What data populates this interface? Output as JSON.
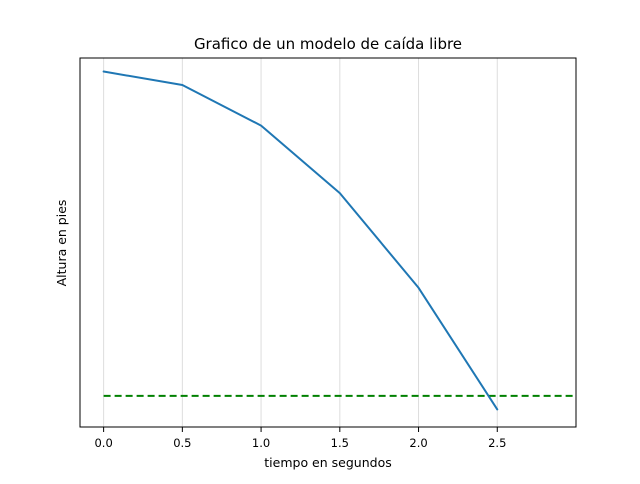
{
  "chart_data": {
    "type": "line",
    "title": "Grafico de un modelo de caída libre",
    "xlabel": "tiempo en segundos",
    "ylabel": "Altura en pies",
    "xlim": [
      -0.15,
      3.0
    ],
    "ylim": [
      -1.3,
      26.0
    ],
    "x_ticks": [
      0.0,
      0.5,
      1.0,
      1.5,
      2.0,
      2.5
    ],
    "x_tick_labels": [
      "0.0",
      "0.5",
      "1.0",
      "1.5",
      "2.0",
      "2.5"
    ],
    "y_ticks_visible": false,
    "grid": "x-only",
    "series": [
      {
        "type": "line",
        "style": "solid",
        "color": "#1f77b4",
        "x": [
          0.0,
          0.5,
          1.0,
          1.5,
          2.0,
          2.5
        ],
        "y": [
          25.0,
          24.0,
          21.0,
          16.0,
          9.0,
          0.0
        ]
      }
    ],
    "reference_lines": [
      {
        "type": "horizontal",
        "style": "dashed",
        "color": "#008000",
        "y": 1.0,
        "x_range": [
          0.0,
          3.0
        ]
      }
    ]
  }
}
